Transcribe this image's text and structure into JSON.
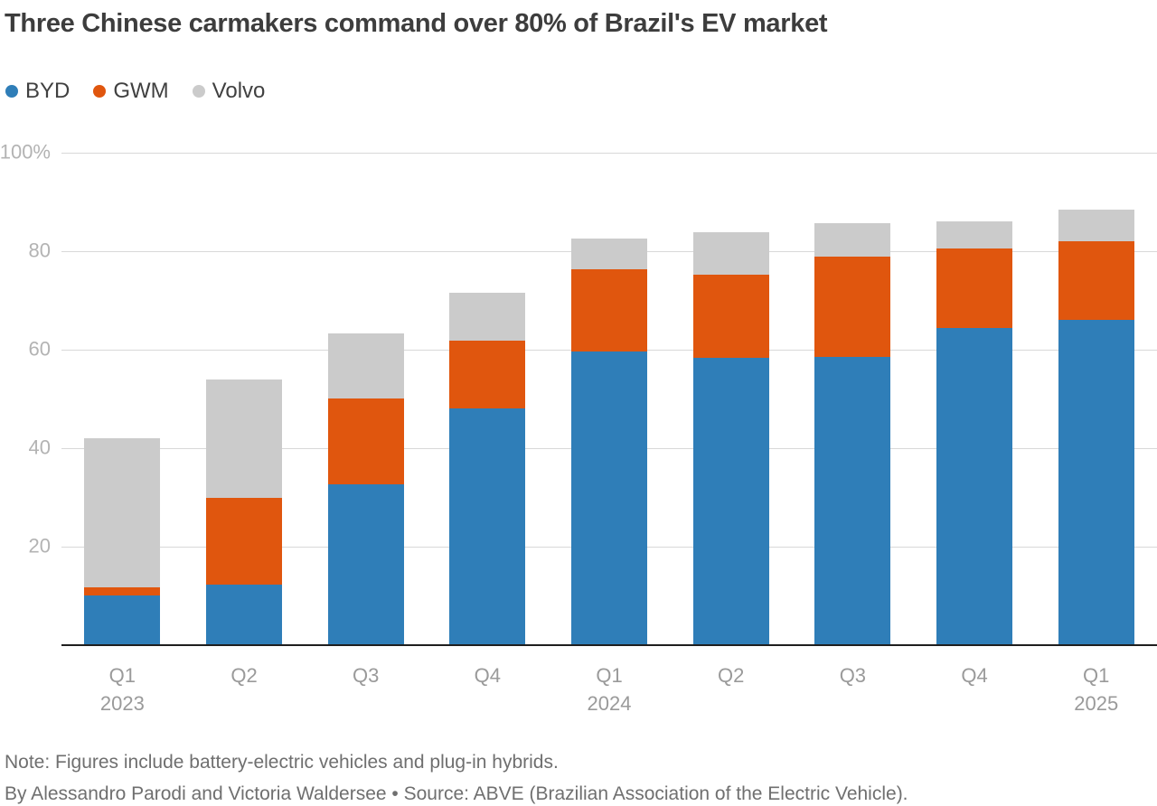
{
  "title": "Three Chinese carmakers command over 80% of Brazil's EV market",
  "legend": [
    {
      "label": "BYD",
      "color": "#2f7eb8"
    },
    {
      "label": "GWM",
      "color": "#e0560e"
    },
    {
      "label": "Volvo",
      "color": "#cbcbcb"
    }
  ],
  "chart_data": {
    "type": "bar",
    "stacked": true,
    "title": "Three Chinese carmakers command over 80% of Brazil's EV market",
    "categories": [
      "Q1",
      "Q2",
      "Q3",
      "Q4",
      "Q1",
      "Q2",
      "Q3",
      "Q4",
      "Q1"
    ],
    "category_years": [
      "2023",
      "",
      "",
      "",
      "2024",
      "",
      "",
      "",
      "2025"
    ],
    "series": [
      {
        "name": "BYD",
        "color": "#2f7eb8",
        "values": [
          10.1,
          12.3,
          32.7,
          48.1,
          59.6,
          58.3,
          58.5,
          64.4,
          66.1
        ]
      },
      {
        "name": "GWM",
        "color": "#e0560e",
        "values": [
          1.6,
          17.7,
          17.4,
          13.7,
          16.7,
          16.9,
          20.4,
          16.2,
          15.9
        ]
      },
      {
        "name": "Volvo",
        "color": "#cbcbcb",
        "values": [
          30.3,
          24.0,
          13.2,
          9.8,
          6.3,
          8.7,
          6.8,
          5.5,
          6.4
        ]
      }
    ],
    "totals": [
      42.0,
      54.0,
      63.3,
      71.6,
      82.6,
      83.9,
      85.7,
      86.1,
      88.4
    ],
    "xlabel": "",
    "ylabel": "",
    "ylim": [
      0,
      100
    ],
    "yticks": [
      {
        "value": 100,
        "label": "100%"
      },
      {
        "value": 80,
        "label": "80"
      },
      {
        "value": 60,
        "label": "60"
      },
      {
        "value": 40,
        "label": "40"
      },
      {
        "value": 20,
        "label": "20"
      }
    ],
    "grid": true,
    "legend_position": "top-left",
    "colors": {
      "gridline": "#d8d8d8",
      "axis_line": "#1f1f1f",
      "ytick_label": "#b3b3b3",
      "xtick_label": "#9a9a9a"
    }
  },
  "footer": {
    "note": "Note: Figures include battery-electric vehicles and plug-in hybrids.",
    "byline": "By Alessandro Parodi and Victoria Waldersee • Source: ABVE (Brazilian Association of the Electric Vehicle)."
  }
}
